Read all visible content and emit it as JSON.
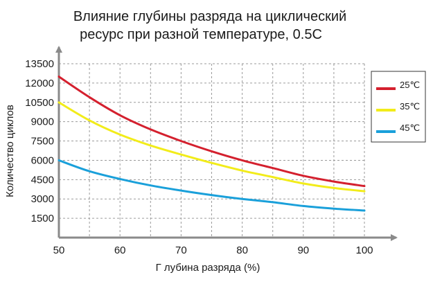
{
  "chart_data": {
    "type": "line",
    "title_lines": [
      "Влияние глубины разряда на циклический",
      "ресурс при разной температуре, 0.5C"
    ],
    "xlabel": "Г лубина разряда  (%)",
    "ylabel": "Количество циклов",
    "xlim": [
      50,
      100
    ],
    "ylim": [
      0,
      13500
    ],
    "x_ticks": [
      50,
      60,
      70,
      80,
      90,
      100
    ],
    "y_ticks": [
      1500,
      3000,
      4500,
      6000,
      7500,
      9000,
      10500,
      12000,
      13500
    ],
    "x_grid": [
      50,
      55,
      60,
      65,
      70,
      75,
      80,
      85,
      90,
      95,
      100
    ],
    "grid": true,
    "legend_position": "right",
    "series": [
      {
        "name": "25℃",
        "color": "#d4202e",
        "x": [
          50,
          55,
          60,
          65,
          70,
          75,
          80,
          85,
          90,
          95,
          100
        ],
        "y": [
          12500,
          10900,
          9500,
          8400,
          7500,
          6700,
          6000,
          5400,
          4800,
          4350,
          4000
        ]
      },
      {
        "name": "35℃",
        "color": "#f2ec1a",
        "x": [
          50,
          55,
          60,
          65,
          70,
          75,
          80,
          85,
          90,
          95,
          100
        ],
        "y": [
          10500,
          9100,
          8000,
          7150,
          6450,
          5800,
          5200,
          4700,
          4200,
          3850,
          3600
        ]
      },
      {
        "name": "45℃",
        "color": "#1aa0da",
        "x": [
          50,
          55,
          60,
          65,
          70,
          75,
          80,
          85,
          90,
          95,
          100
        ],
        "y": [
          6000,
          5150,
          4550,
          4050,
          3650,
          3300,
          3000,
          2750,
          2450,
          2250,
          2100
        ]
      }
    ]
  }
}
